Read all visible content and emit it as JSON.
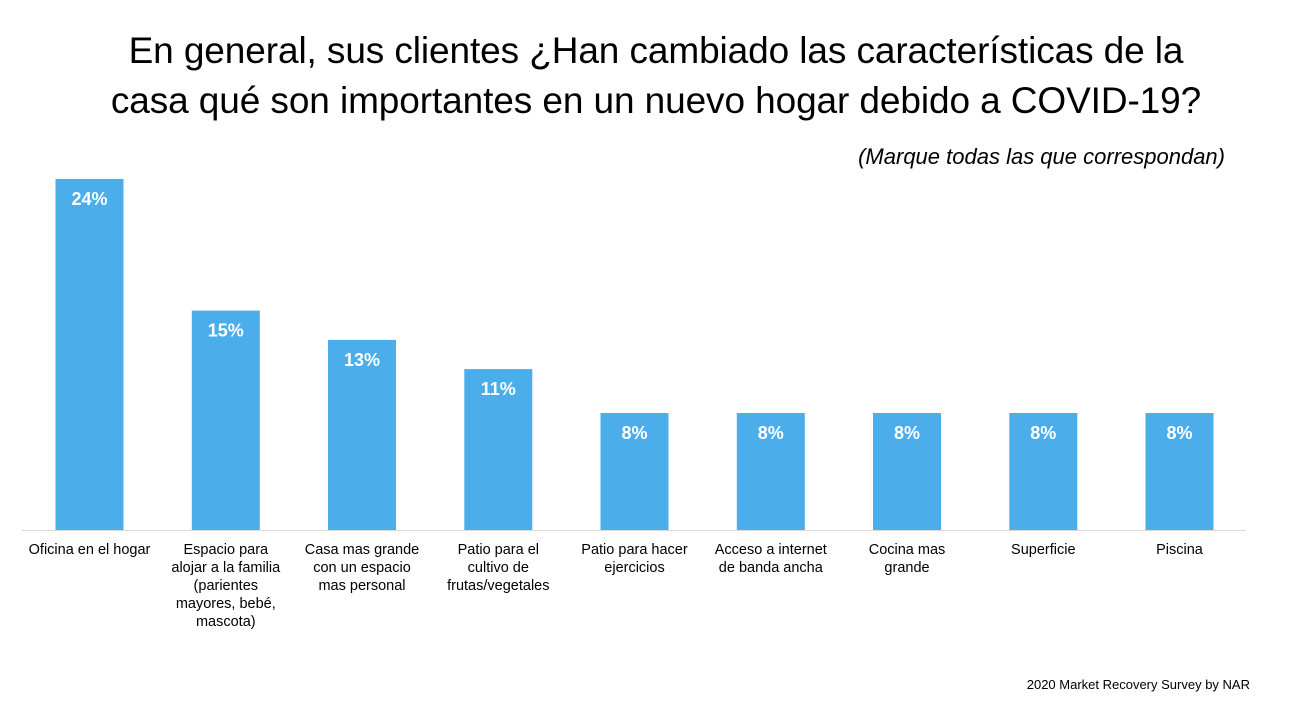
{
  "title_line1": "En general, sus clientes ¿Han cambiado las características de la",
  "title_line2": "casa qué son importantes en un nuevo hogar debido a COVID-19?",
  "subtitle": "(Marque todas las que correspondan)",
  "source": "2020 Market Recovery Survey by NAR",
  "colors": {
    "bar": "#4badea",
    "bar_label": "#ffffff",
    "axis": "#d9d9d9"
  },
  "chart_data": {
    "type": "bar",
    "title": "En general, sus clientes ¿Han cambiado las características de la casa qué son importantes en un nuevo hogar debido a COVID-19?",
    "subtitle": "(Marque todas las que correspondan)",
    "categories": [
      "Oficina en el hogar",
      "Espacio para alojar a la familia (parientes mayores, bebé, mascota)",
      "Casa mas grande con un espacio mas personal",
      "Patio para el cultivo de frutas/vegetales",
      "Patio para hacer ejercicios",
      "Acceso a internet de banda ancha",
      "Cocina mas grande",
      "Superficie",
      "Piscina"
    ],
    "category_lines": [
      [
        "Oficina en el hogar"
      ],
      [
        "Espacio para",
        "alojar a la familia",
        "(parientes",
        "mayores, bebé,",
        "mascota)"
      ],
      [
        "Casa mas grande",
        "con un espacio",
        "mas personal"
      ],
      [
        "Patio para el",
        "cultivo de",
        "frutas/vegetales"
      ],
      [
        "Patio para hacer",
        "ejercicios"
      ],
      [
        "Acceso a internet",
        "de banda ancha"
      ],
      [
        "Cocina mas",
        "grande"
      ],
      [
        "Superficie"
      ],
      [
        "Piscina"
      ]
    ],
    "values": [
      24,
      15,
      13,
      11,
      8,
      8,
      8,
      8,
      8
    ],
    "data_labels": [
      "24%",
      "15%",
      "13%",
      "11%",
      "8%",
      "8%",
      "8%",
      "8%",
      "8%"
    ],
    "unit": "%",
    "ylim": [
      0,
      24
    ],
    "grid": false,
    "legend": "none"
  }
}
